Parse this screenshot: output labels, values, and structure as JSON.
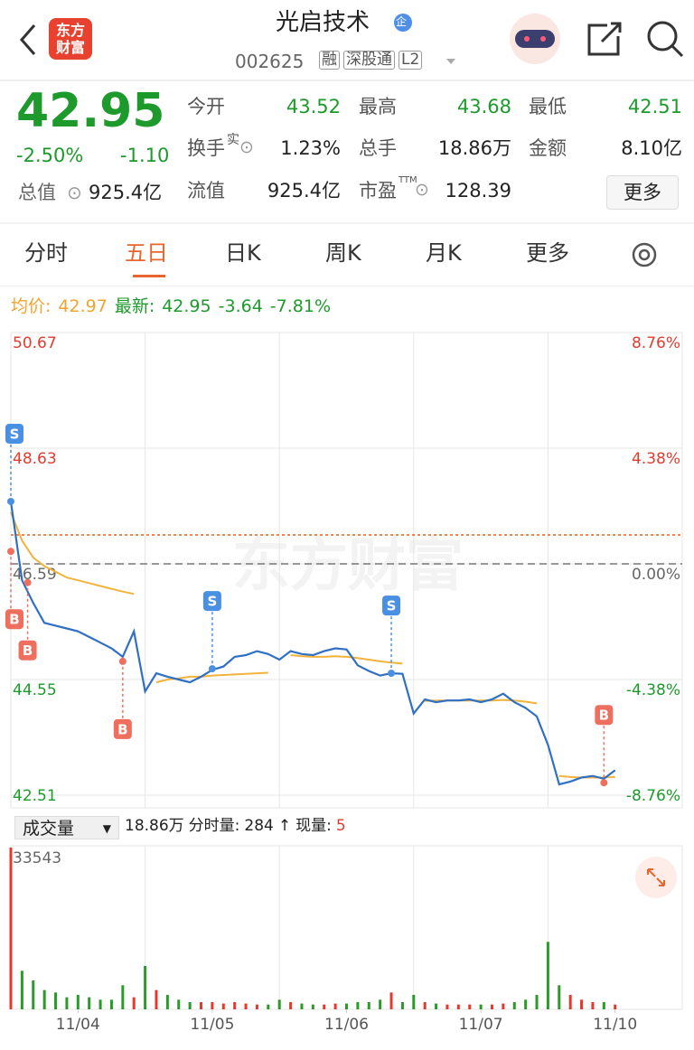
{
  "header": {
    "title": "光启技术",
    "badge": "企",
    "logo": "东方财富",
    "code": "002625",
    "tags": [
      "融",
      "深股通",
      "L2"
    ]
  },
  "quote": {
    "price": "42.95",
    "change_pct": "-2.50%",
    "change": "-1.10",
    "total_value_label": "总值",
    "total_value": "925.4亿"
  },
  "stats": [
    {
      "label": "今开",
      "value": "43.52"
    },
    {
      "label": "最高",
      "value": "43.68"
    },
    {
      "label": "最低",
      "value": "42.51"
    },
    {
      "label": "换手",
      "sup": "实",
      "value": "1.23%"
    },
    {
      "label": "总手",
      "value": "18.86万"
    },
    {
      "label": "金额",
      "value": "8.10亿"
    },
    {
      "label": "流值",
      "value": "925.4亿"
    },
    {
      "label": "市盈",
      "sup": "TTM",
      "value": "128.39"
    }
  ],
  "more_button": "更多",
  "tabs": [
    "分时",
    "五日",
    "日K",
    "周K",
    "月K",
    "更多"
  ],
  "legend": {
    "avg_label": "均价:",
    "avg": "42.97",
    "latest_label": "最新:",
    "latest": "42.95",
    "change": "-3.64",
    "change_pct": "-7.81%"
  },
  "volume_bar": {
    "selector": "成交量",
    "total": "18.86万",
    "period_label": "分时量:",
    "period": "284",
    "arrow": "↑",
    "now_label": "现量:",
    "now": "5"
  },
  "chart_data": [
    {
      "type": "line",
      "watermark": "东方财富",
      "x": [
        0,
        20,
        40,
        60,
        80,
        100,
        120,
        140,
        160,
        180,
        200,
        220,
        240,
        260,
        280,
        300,
        320,
        340,
        360,
        380,
        400,
        420,
        440,
        460,
        480,
        500,
        520,
        540,
        560,
        580,
        600,
        620,
        640,
        660,
        680,
        700,
        720,
        740,
        760,
        780,
        800,
        820,
        840,
        860,
        880,
        900,
        920,
        940,
        960,
        980,
        1000,
        1020,
        1040,
        1060,
        1080
      ],
      "xlim": [
        0,
        1200
      ],
      "ylim": [
        42.51,
        50.67
      ],
      "yticks": [
        50.67,
        48.63,
        46.59,
        44.55,
        42.51
      ],
      "y2lim": [
        -8.76,
        8.76
      ],
      "y2ticks": [
        {
          "value": 8.76,
          "label": "8.76%"
        },
        {
          "value": 4.38,
          "label": "4.38%"
        },
        {
          "value": 0,
          "label": "0.00%"
        },
        {
          "value": -4.38,
          "label": "-4.38%"
        },
        {
          "value": -8.76,
          "label": "-8.76%"
        }
      ],
      "grid": true,
      "reference_line": {
        "value": 47.1,
        "color": "#e0641f"
      },
      "series": [
        {
          "color": "#2f6fc4",
          "values": [
            47.69,
            46.3,
            45.9,
            45.55,
            45.5,
            45.45,
            45.4,
            45.3,
            45.2,
            45.1,
            44.95,
            45.4,
            44.34,
            44.66,
            44.6,
            44.55,
            44.5,
            44.6,
            44.72,
            44.78,
            44.95,
            44.98,
            45.05,
            45.0,
            44.9,
            45.05,
            45.0,
            44.98,
            45.05,
            45.1,
            45.08,
            44.8,
            44.7,
            44.62,
            44.66,
            44.65,
            43.95,
            44.2,
            44.15,
            44.18,
            44.18,
            44.2,
            44.15,
            44.2,
            44.3,
            44.15,
            44.05,
            43.9,
            43.4,
            42.7,
            42.75,
            42.82,
            42.85,
            42.8,
            42.95
          ]
        },
        {
          "color": "#f2b33d",
          "values": [
            47.5,
            47.0,
            46.7,
            46.55,
            46.45,
            46.35,
            46.3,
            46.25,
            46.2,
            46.15,
            46.1,
            46.06,
            null,
            44.5,
            44.55,
            44.57,
            44.6,
            44.6,
            44.62,
            44.63,
            44.64,
            44.65,
            44.66,
            44.67,
            null,
            44.98,
            44.96,
            44.95,
            44.95,
            44.96,
            44.95,
            44.93,
            44.9,
            44.87,
            44.85,
            44.83,
            null,
            44.17,
            44.18,
            44.18,
            44.18,
            44.18,
            44.18,
            44.18,
            44.19,
            44.18,
            44.16,
            44.13,
            null,
            42.85,
            42.83,
            42.82,
            42.82,
            42.82,
            42.83
          ]
        }
      ],
      "markers": [
        {
          "label": "S",
          "x": 0,
          "y": 47.69,
          "color": "#4a90e2"
        },
        {
          "label": "B",
          "x": 0,
          "y": 46.81,
          "color": "#ef6f5e"
        },
        {
          "label": "B",
          "x": 30,
          "y": 46.26,
          "color": "#ef6f5e"
        },
        {
          "label": "B",
          "x": 200,
          "y": 44.87,
          "color": "#ef6f5e"
        },
        {
          "label": "S",
          "x": 360,
          "y": 44.74,
          "color": "#4a90e2"
        },
        {
          "label": "S",
          "x": 680,
          "y": 44.66,
          "color": "#4a90e2"
        },
        {
          "label": "B",
          "x": 1060,
          "y": 42.73,
          "color": "#ef6f5e"
        }
      ]
    },
    {
      "type": "bar",
      "ylim": [
        0,
        33543
      ],
      "yticks": [
        33543
      ],
      "xticks": [
        {
          "value": 120,
          "label": "11/04"
        },
        {
          "value": 360,
          "label": "11/05"
        },
        {
          "value": 600,
          "label": "11/06"
        },
        {
          "value": 840,
          "label": "11/07"
        },
        {
          "value": 1080,
          "label": "11/10"
        }
      ],
      "up_color": "#e8372c",
      "down_color": "#2c9a2a",
      "values": [
        33543,
        8000,
        6000,
        4000,
        3500,
        2500,
        3000,
        2500,
        2000,
        2000,
        5000,
        2500,
        9000,
        4000,
        3000,
        2000,
        1500,
        1500,
        1500,
        1200,
        1500,
        1200,
        1000,
        1000,
        2000,
        1500,
        1200,
        1000,
        1000,
        1200,
        1200,
        1500,
        1500,
        2000,
        3500,
        1500,
        3000,
        1500,
        1200,
        1000,
        1000,
        1000,
        1000,
        1000,
        1200,
        1500,
        2000,
        3000,
        14000,
        5000,
        3000,
        2000,
        1500,
        1500,
        1000
      ]
    }
  ]
}
